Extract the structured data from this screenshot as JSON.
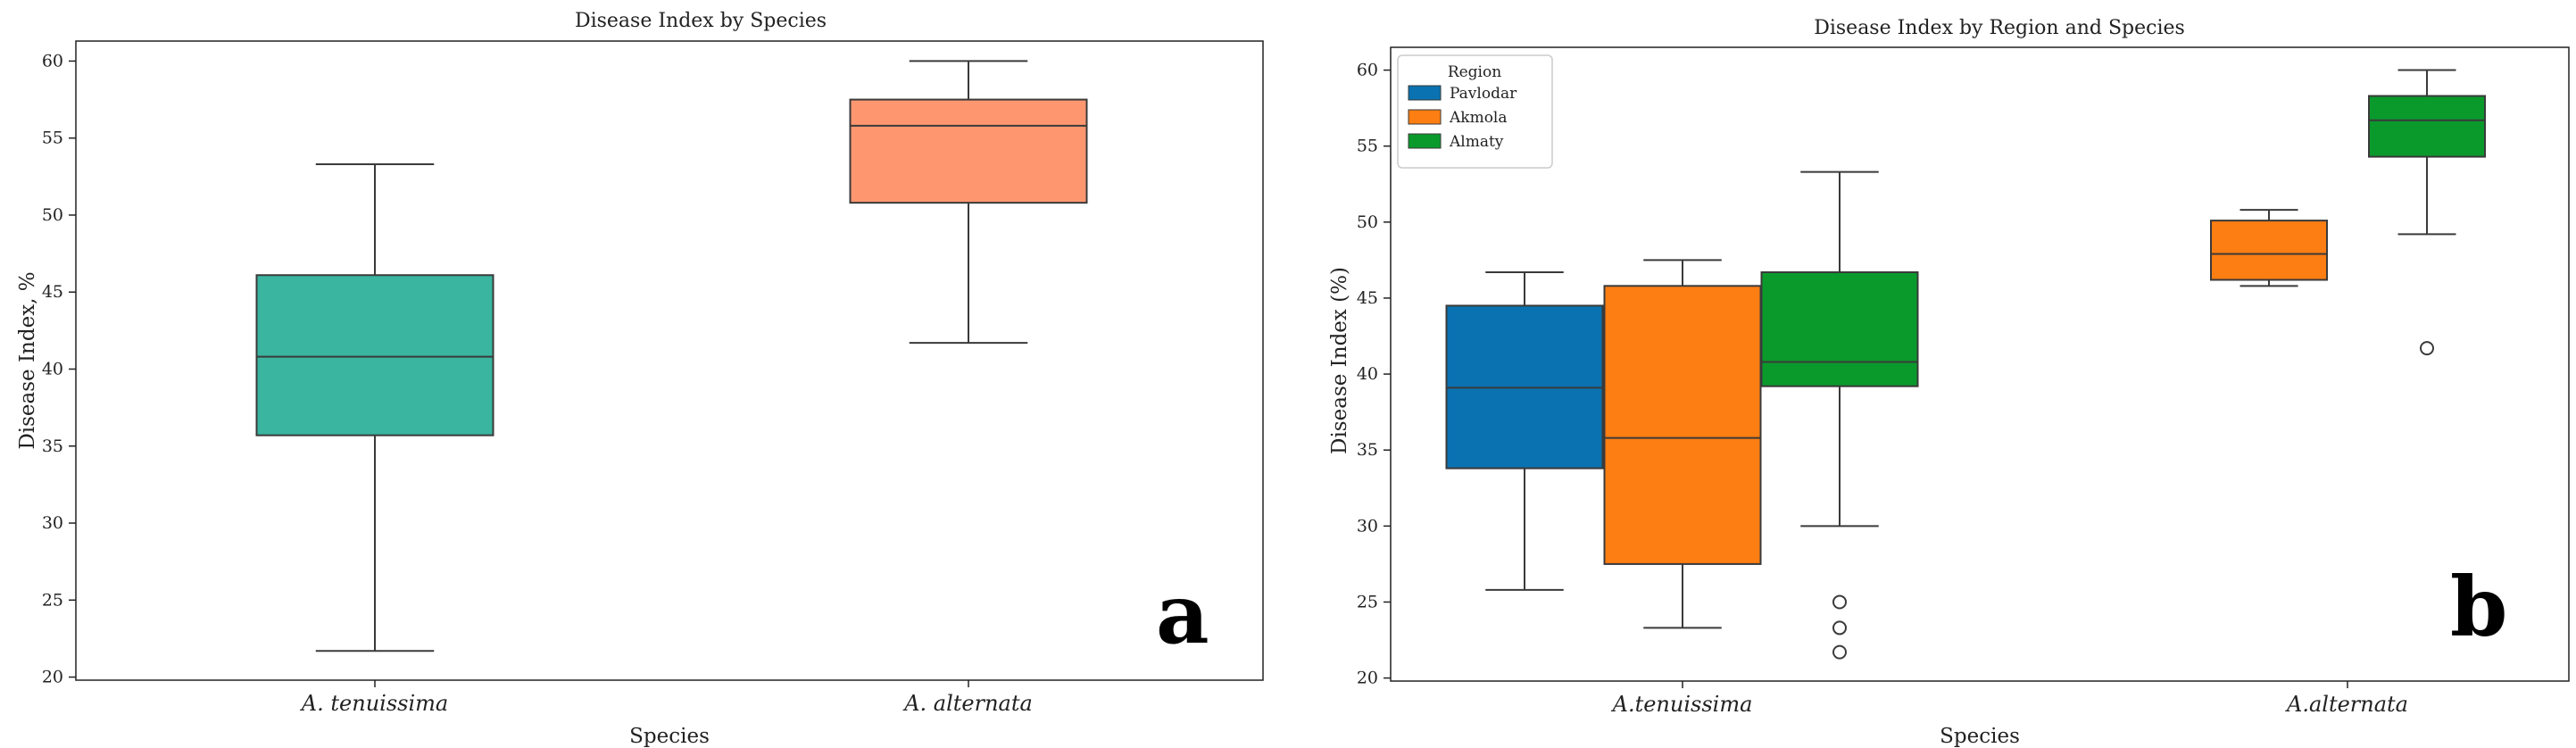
{
  "chart_data": [
    {
      "type": "boxplot",
      "title": "Disease Index by Species",
      "xlabel": "Species",
      "ylabel": "Disease Index, %",
      "ylim": [
        19.8,
        61.3
      ],
      "yticks": [
        20,
        25,
        30,
        35,
        40,
        45,
        50,
        55,
        60
      ],
      "panel_label": "a",
      "categories": [
        "A. tenuissima",
        "A. alternata"
      ],
      "boxes": [
        {
          "category": "A. tenuissima",
          "color": "#3ab5a0",
          "whisker_low": 21.7,
          "q1": 35.7,
          "median": 40.8,
          "q3": 46.1,
          "whisker_high": 53.3,
          "outliers": []
        },
        {
          "category": "A. alternata",
          "color": "#fe9770",
          "whisker_low": 41.7,
          "q1": 50.8,
          "median": 55.8,
          "q3": 57.5,
          "whisker_high": 60.0,
          "outliers": []
        }
      ]
    },
    {
      "type": "boxplot",
      "title": "Disease Index by Region and Species",
      "xlabel": "Species",
      "ylabel": "Disease Index (%)",
      "ylim": [
        19.8,
        61.5
      ],
      "yticks": [
        20,
        25,
        30,
        35,
        40,
        45,
        50,
        55,
        60
      ],
      "panel_label": "b",
      "categories": [
        "A.tenuissima",
        "A.alternata"
      ],
      "legend": {
        "title": "Region",
        "position": "top-left",
        "entries": [
          {
            "name": "Pavlodar",
            "color": "#0a72b0"
          },
          {
            "name": "Akmola",
            "color": "#fd7e12"
          },
          {
            "name": "Almaty",
            "color": "#0a9a2c"
          }
        ]
      },
      "boxes": [
        {
          "category": "A.tenuissima",
          "region": "Pavlodar",
          "color": "#0a72b0",
          "whisker_low": 25.8,
          "q1": 33.8,
          "median": 39.1,
          "q3": 44.5,
          "whisker_high": 46.7,
          "outliers": []
        },
        {
          "category": "A.tenuissima",
          "region": "Akmola",
          "color": "#fd7e12",
          "whisker_low": 23.3,
          "q1": 27.5,
          "median": 35.8,
          "q3": 45.8,
          "whisker_high": 47.5,
          "outliers": []
        },
        {
          "category": "A.tenuissima",
          "region": "Almaty",
          "color": "#0a9a2c",
          "whisker_low": 30.0,
          "q1": 39.2,
          "median": 40.8,
          "q3": 46.7,
          "whisker_high": 53.3,
          "outliers": [
            25.0,
            23.3,
            21.7
          ]
        },
        {
          "category": "A.alternata",
          "region": "Akmola",
          "color": "#fd7e12",
          "whisker_low": 45.8,
          "q1": 46.2,
          "median": 47.9,
          "q3": 50.1,
          "whisker_high": 50.8,
          "outliers": []
        },
        {
          "category": "A.alternata",
          "region": "Almaty",
          "color": "#0a9a2c",
          "whisker_low": 49.2,
          "q1": 54.3,
          "median": 56.7,
          "q3": 58.3,
          "whisker_high": 60.0,
          "outliers": [
            41.7
          ]
        }
      ]
    }
  ]
}
